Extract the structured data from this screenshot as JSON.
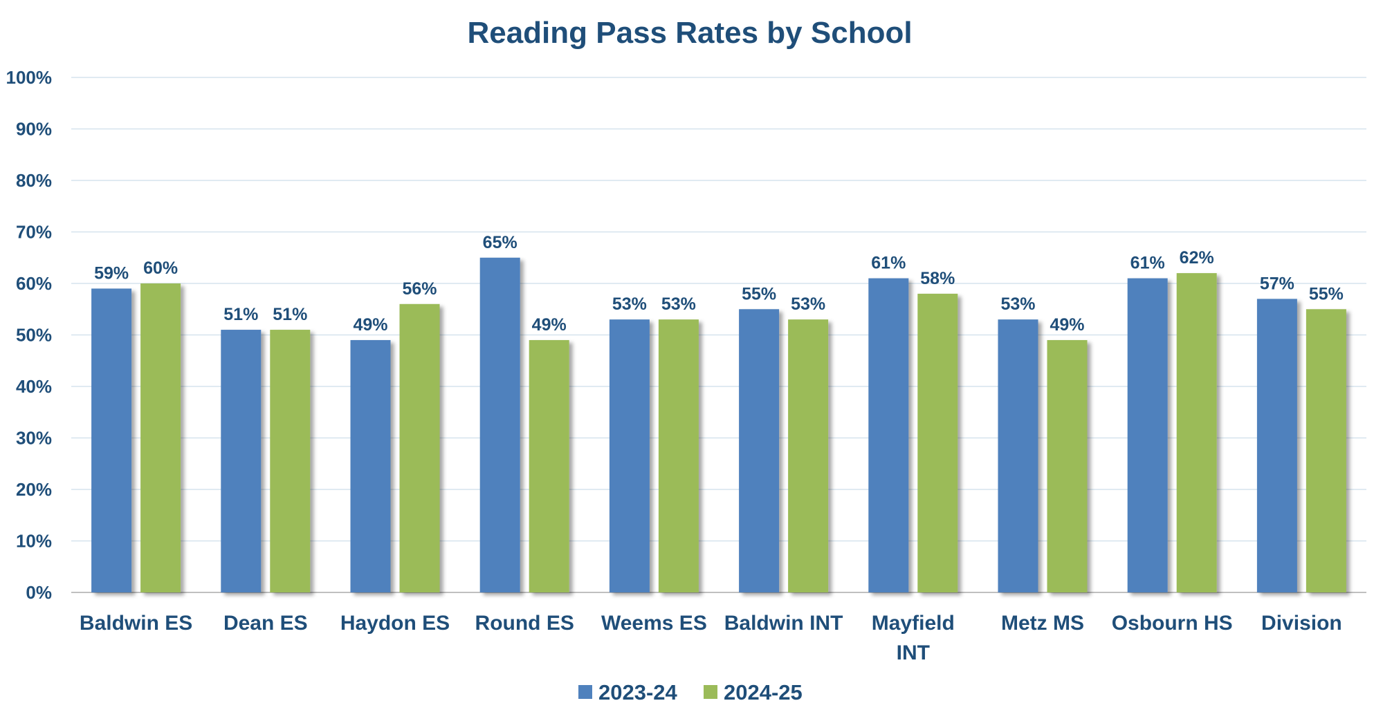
{
  "chart_data": {
    "type": "bar",
    "title": "Reading Pass Rates by School",
    "xlabel": "",
    "ylabel": "",
    "ylim": [
      0,
      100
    ],
    "y_ticks": [
      "0%",
      "10%",
      "20%",
      "30%",
      "40%",
      "50%",
      "60%",
      "70%",
      "80%",
      "90%",
      "100%"
    ],
    "grid": true,
    "legend_position": "bottom",
    "categories": [
      [
        "Baldwin ES"
      ],
      [
        "Dean ES"
      ],
      [
        "Haydon ES"
      ],
      [
        "Round ES"
      ],
      [
        "Weems ES"
      ],
      [
        "Baldwin INT"
      ],
      [
        "Mayfield",
        "INT"
      ],
      [
        "Metz MS"
      ],
      [
        "Osbourn HS"
      ],
      [
        "Division"
      ]
    ],
    "series": [
      {
        "name": "2023-24",
        "color": "#4F81BD",
        "values": [
          59,
          51,
          49,
          65,
          53,
          55,
          61,
          53,
          61,
          57
        ],
        "labels": [
          "59%",
          "51%",
          "49%",
          "65%",
          "53%",
          "55%",
          "61%",
          "53%",
          "61%",
          "57%"
        ]
      },
      {
        "name": "2024-25",
        "color": "#9BBB59",
        "values": [
          60,
          51,
          56,
          49,
          53,
          53,
          58,
          49,
          62,
          55
        ],
        "labels": [
          "60%",
          "51%",
          "56%",
          "49%",
          "53%",
          "53%",
          "58%",
          "49%",
          "62%",
          "55%"
        ]
      }
    ],
    "colors": {
      "text": "#1F4E79",
      "grid": "#D6E3EE",
      "axis": "#BFBFBF"
    }
  }
}
